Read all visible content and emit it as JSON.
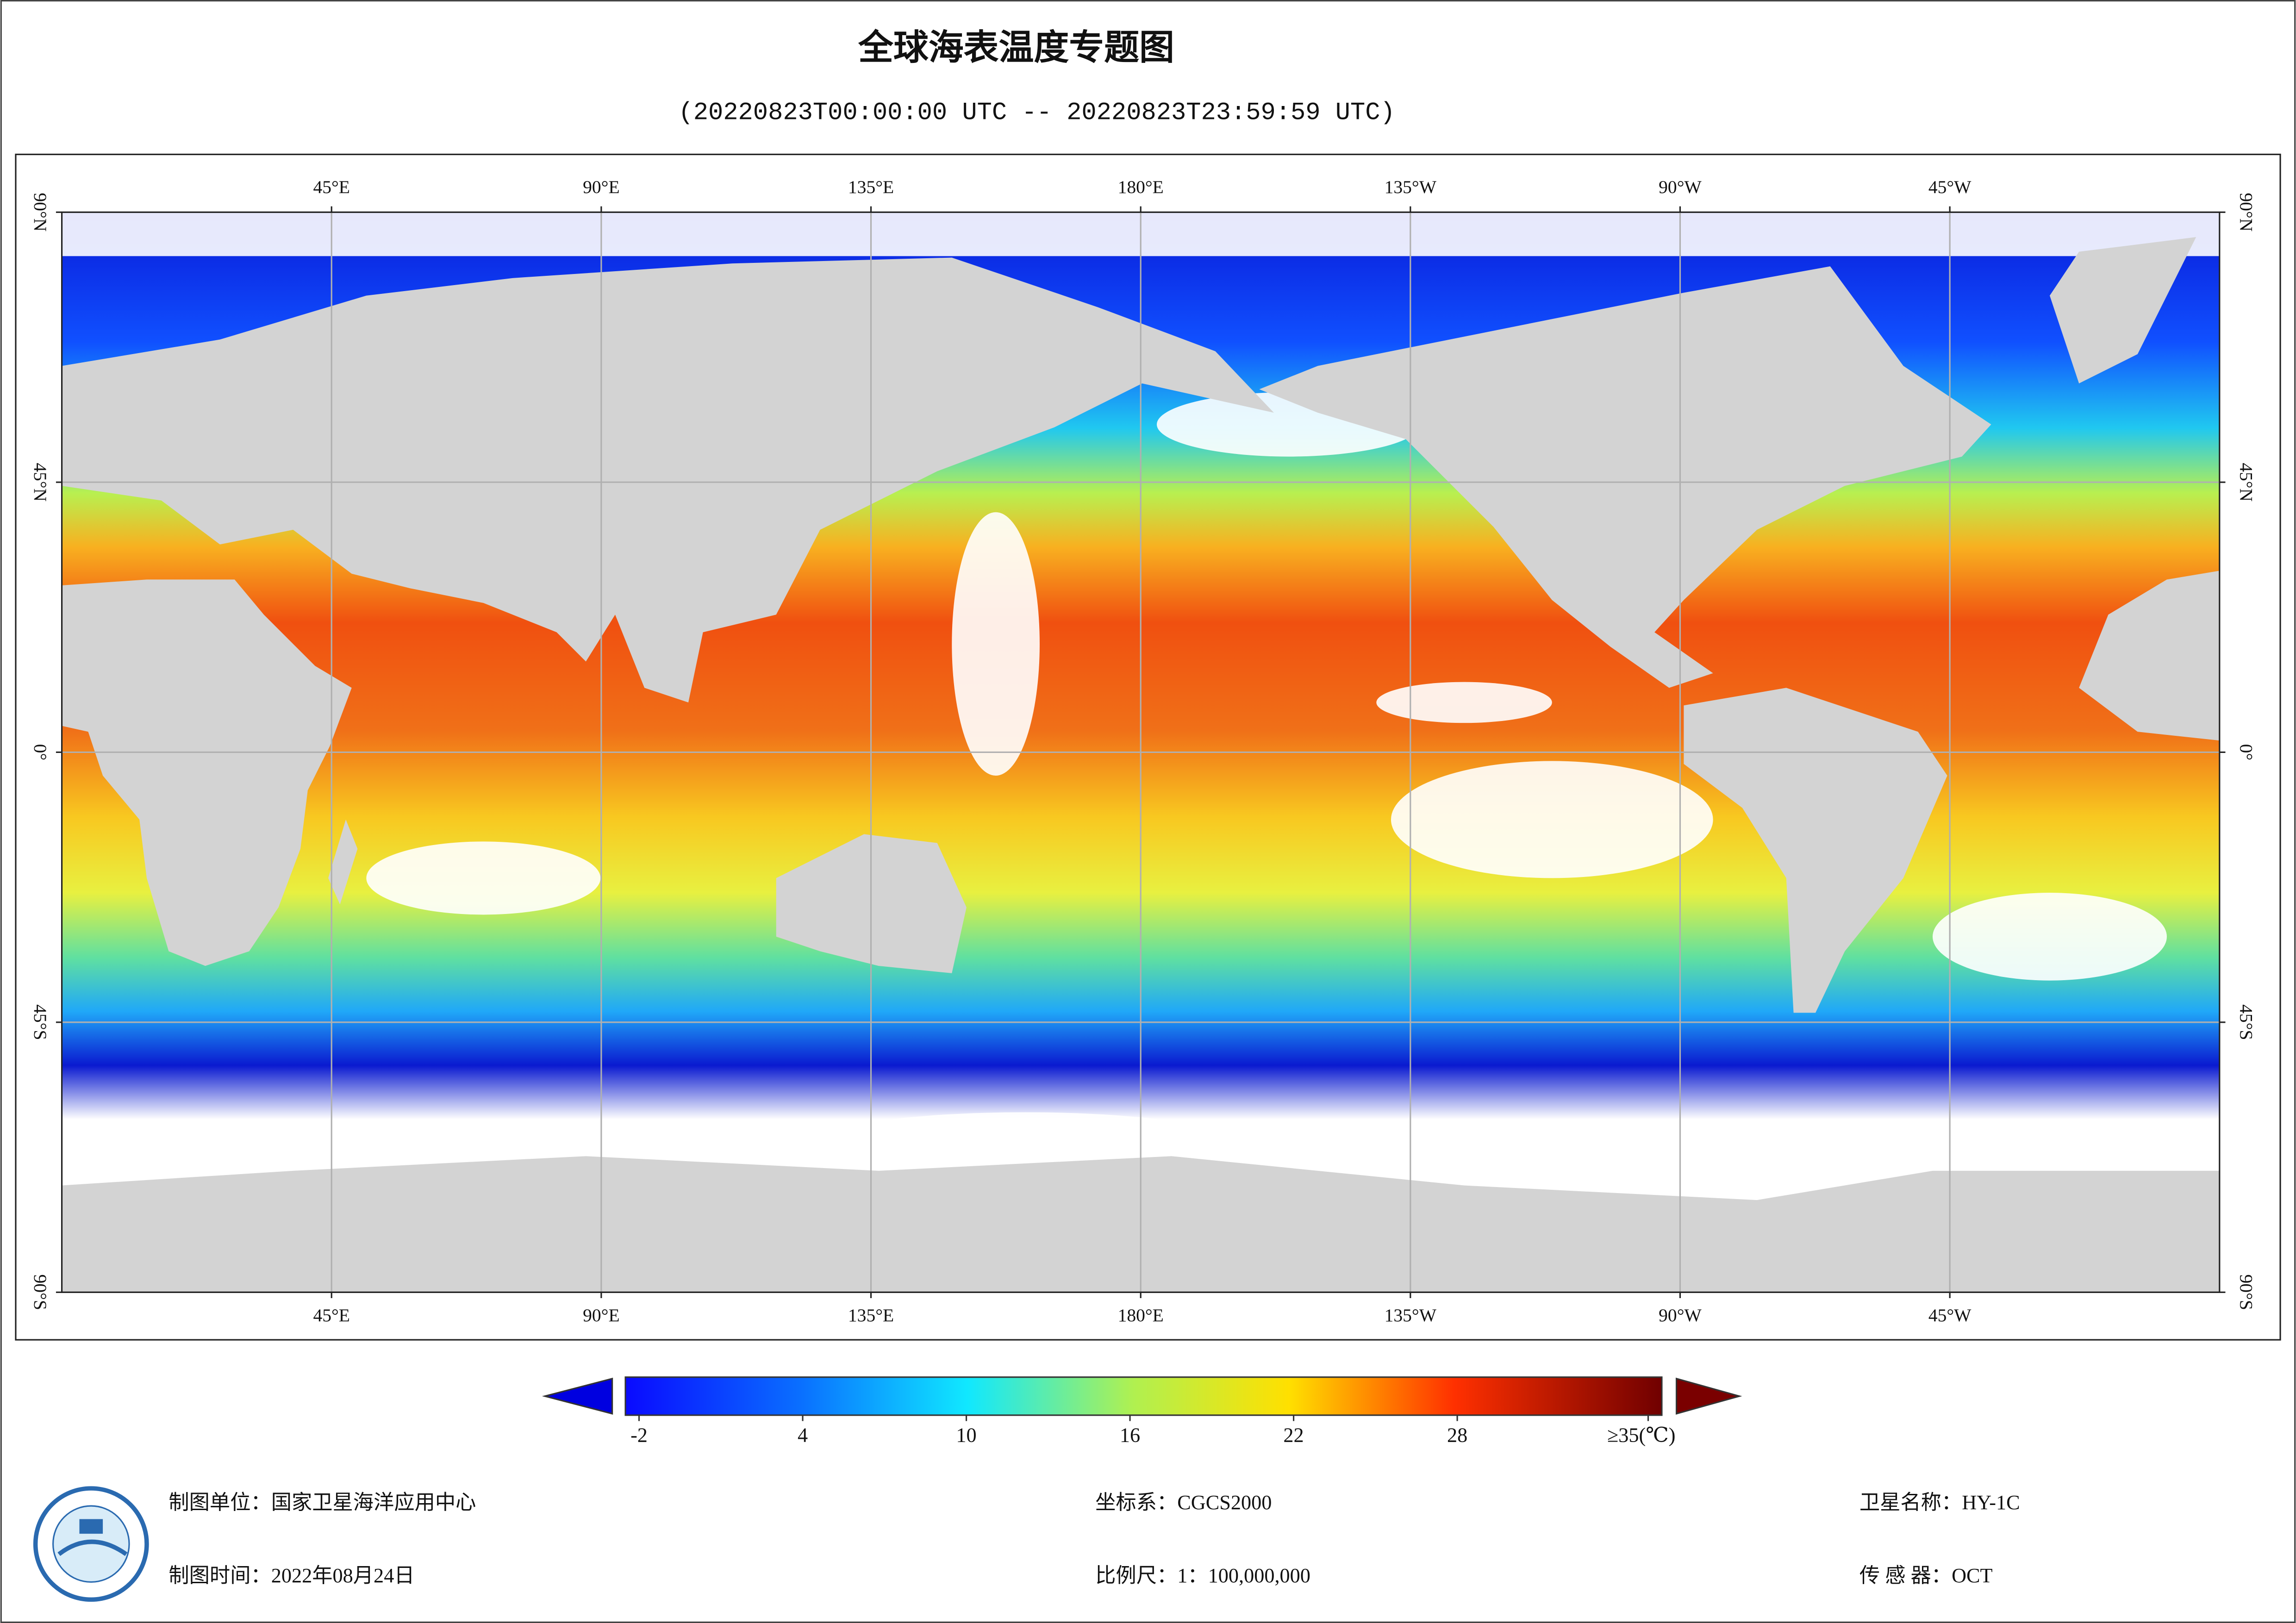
{
  "title": "全球海表温度专题图",
  "subtitle": "(20220823T00:00:00 UTC -- 20220823T23:59:59 UTC)",
  "map": {
    "lonlim": [
      0,
      360
    ],
    "latlim": [
      -90,
      90
    ],
    "grid": true,
    "lon_ticks": [
      {
        "value": 45,
        "label": "45°E"
      },
      {
        "value": 90,
        "label": "90°E"
      },
      {
        "value": 135,
        "label": "135°E"
      },
      {
        "value": 180,
        "label": "180°E"
      },
      {
        "value": 225,
        "label": "135°W"
      },
      {
        "value": 270,
        "label": "90°W"
      },
      {
        "value": 315,
        "label": "45°W"
      }
    ],
    "lat_ticks": [
      {
        "value": 90,
        "label": "90°N"
      },
      {
        "value": 45,
        "label": "45°N"
      },
      {
        "value": 0,
        "label": "0°"
      },
      {
        "value": -45,
        "label": "45°S"
      },
      {
        "value": -90,
        "label": "90°S"
      }
    ]
  },
  "colorbar": {
    "clim": [
      -2.5,
      35.5
    ],
    "ticks": [
      -2,
      4,
      10,
      16,
      22,
      28,
      {
        "value": 35,
        "label": "≥35(℃)"
      }
    ]
  },
  "footer": {
    "unit": "制图单位：国家卫星海洋应用中心",
    "time": "制图时间：2022年08月24日",
    "crs": "坐标系：CGCS2000",
    "scale": "比例尺：1：100,000,000",
    "satellite": "卫星名称：HY-1C",
    "sensor": "传 感 器：OCT"
  }
}
